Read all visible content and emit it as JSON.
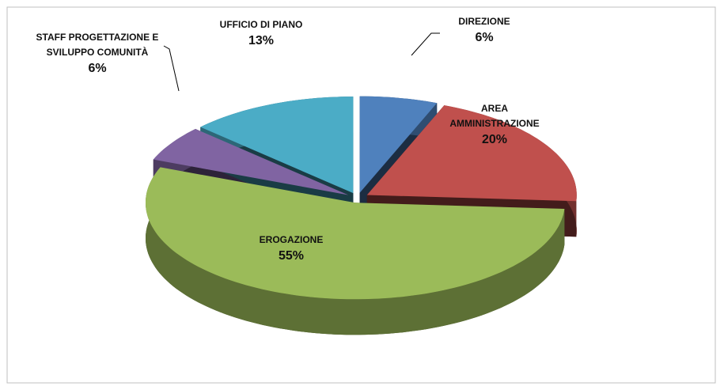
{
  "chart_data": {
    "type": "pie3d",
    "categories": [
      "DIREZIONE",
      "AREA AMMINISTRAZIONE",
      "EROGAZIONE",
      "STAFF PROGETTAZIONE E SVILUPPO COMUNITÀ",
      "UFFICIO DI PIANO"
    ],
    "values": [
      6,
      20,
      55,
      6,
      13
    ],
    "value_labels": [
      "6%",
      "20%",
      "55%",
      "6%",
      "13%"
    ],
    "colors": [
      "#4f81bd",
      "#c0504d",
      "#9bbb59",
      "#8064a2",
      "#4bacc6"
    ]
  }
}
